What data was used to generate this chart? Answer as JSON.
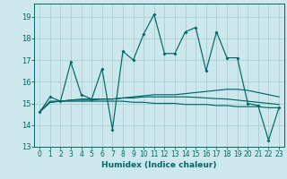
{
  "xlabel": "Humidex (Indice chaleur)",
  "bg_color": "#cce8ec",
  "grid_color": "#aacdd4",
  "line_color": "#006666",
  "xlim": [
    -0.5,
    23.5
  ],
  "ylim": [
    13,
    19.6
  ],
  "yticks": [
    13,
    14,
    15,
    16,
    17,
    18,
    19
  ],
  "xticks": [
    0,
    1,
    2,
    3,
    4,
    5,
    6,
    7,
    8,
    9,
    10,
    11,
    12,
    13,
    14,
    15,
    16,
    17,
    18,
    19,
    20,
    21,
    22,
    23
  ],
  "series1_x": [
    0,
    1,
    2,
    3,
    4,
    5,
    6,
    7,
    8,
    9,
    10,
    11,
    12,
    13,
    14,
    15,
    16,
    17,
    18,
    19,
    20,
    21,
    22,
    23
  ],
  "series1_y": [
    14.6,
    15.3,
    15.1,
    16.9,
    15.4,
    15.2,
    16.6,
    13.8,
    17.4,
    17.0,
    18.2,
    19.1,
    17.3,
    17.3,
    18.3,
    18.5,
    16.5,
    18.3,
    17.1,
    17.1,
    15.0,
    14.9,
    13.3,
    14.8
  ],
  "series2_x": [
    0,
    1,
    2,
    3,
    4,
    5,
    6,
    7,
    8,
    9,
    10,
    11,
    12,
    13,
    14,
    15,
    16,
    17,
    18,
    19,
    20,
    21,
    22,
    23
  ],
  "series2_y": [
    14.6,
    15.1,
    15.1,
    15.15,
    15.15,
    15.15,
    15.2,
    15.2,
    15.25,
    15.3,
    15.35,
    15.4,
    15.4,
    15.4,
    15.45,
    15.5,
    15.55,
    15.6,
    15.65,
    15.65,
    15.6,
    15.5,
    15.4,
    15.3
  ],
  "series3_x": [
    0,
    1,
    2,
    3,
    4,
    5,
    6,
    7,
    8,
    9,
    10,
    11,
    12,
    13,
    14,
    15,
    16,
    17,
    18,
    19,
    20,
    21,
    22,
    23
  ],
  "series3_y": [
    14.6,
    15.05,
    15.1,
    15.1,
    15.1,
    15.1,
    15.1,
    15.1,
    15.1,
    15.05,
    15.05,
    15.0,
    15.0,
    15.0,
    14.95,
    14.95,
    14.95,
    14.9,
    14.9,
    14.85,
    14.85,
    14.85,
    14.8,
    14.8
  ],
  "series4_x": [
    0,
    1,
    2,
    3,
    4,
    5,
    6,
    7,
    8,
    9,
    10,
    11,
    12,
    13,
    14,
    15,
    16,
    17,
    18,
    19,
    20,
    21,
    22,
    23
  ],
  "series4_y": [
    14.6,
    15.05,
    15.1,
    15.15,
    15.2,
    15.2,
    15.2,
    15.2,
    15.25,
    15.25,
    15.3,
    15.3,
    15.3,
    15.3,
    15.3,
    15.28,
    15.25,
    15.22,
    15.2,
    15.15,
    15.1,
    15.05,
    15.0,
    14.95
  ]
}
